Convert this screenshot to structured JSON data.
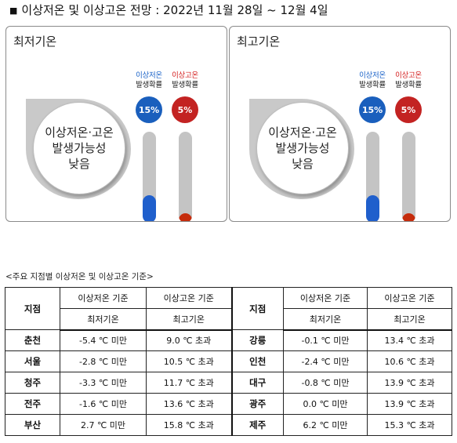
{
  "header": {
    "title": "이상저온 및 이상고온 전망 : 2022년 11월 28일 ~ 12월 4일",
    "bullet": "■"
  },
  "panels": [
    {
      "title": "최저기온",
      "bubble": [
        "이상저온·고온",
        "발생가능성",
        "낮음"
      ],
      "cold": {
        "label1": "이상저온",
        "label2": "발생확률",
        "value_text": "15%",
        "value": 15
      },
      "hot": {
        "label1": "이상고온",
        "label2": "발생확률",
        "value_text": "5%",
        "value": 5
      }
    },
    {
      "title": "최고기온",
      "bubble": [
        "이상저온·고온",
        "발생가능성",
        "낮음"
      ],
      "cold": {
        "label1": "이상저온",
        "label2": "발생확률",
        "value_text": "15%",
        "value": 15
      },
      "hot": {
        "label1": "이상고온",
        "label2": "발생확률",
        "value_text": "5%",
        "value": 5
      }
    }
  ],
  "caption": "<주요 지점별 이상저온 및 이상고온 기준>",
  "table": {
    "station_header": "지점",
    "cold_header": "이상저온 기준",
    "hot_header": "이상고온 기준",
    "cold_sub": "최저기온",
    "hot_sub": "최고기온",
    "rows": [
      {
        "left": {
          "station": "춘천",
          "cold": "-5.4 ℃ 미만",
          "hot": "9.0 ℃ 초과"
        },
        "right": {
          "station": "강릉",
          "cold": "-0.1 ℃ 미만",
          "hot": "13.4 ℃ 초과"
        }
      },
      {
        "left": {
          "station": "서울",
          "cold": "-2.8 ℃ 미만",
          "hot": "10.5 ℃ 초과"
        },
        "right": {
          "station": "인천",
          "cold": "-2.4 ℃ 미만",
          "hot": "10.6 ℃ 초과"
        }
      },
      {
        "left": {
          "station": "청주",
          "cold": "-3.3 ℃ 미만",
          "hot": "11.7 ℃ 초과"
        },
        "right": {
          "station": "대구",
          "cold": "-0.8 ℃ 미만",
          "hot": "13.9 ℃ 초과"
        }
      },
      {
        "left": {
          "station": "전주",
          "cold": "-1.6 ℃ 미만",
          "hot": "13.6 ℃ 초과"
        },
        "right": {
          "station": "광주",
          "cold": "0.0 ℃ 미만",
          "hot": "13.9 ℃ 초과"
        }
      },
      {
        "left": {
          "station": "부산",
          "cold": "2.7 ℃ 미만",
          "hot": "15.8 ℃ 초과"
        },
        "right": {
          "station": "제주",
          "cold": "6.2 ℃ 미만",
          "hot": "15.3 ℃ 초과"
        }
      }
    ]
  },
  "colors": {
    "cold": "#1f5fcc",
    "hot": "#c52c0c",
    "thermo_track": "#c4c4c4"
  }
}
